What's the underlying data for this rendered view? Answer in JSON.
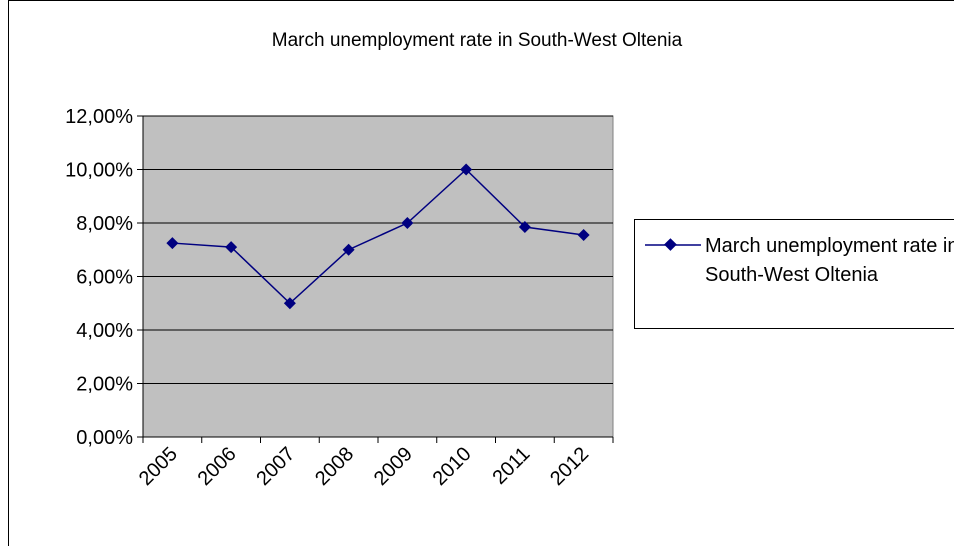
{
  "chart_data": {
    "type": "line",
    "title": "March unemployment rate in South-West Oltenia",
    "categories": [
      "2005",
      "2006",
      "2007",
      "2008",
      "2009",
      "2010",
      "2011",
      "2012"
    ],
    "series": [
      {
        "name": "March unemployment rate in South-West Oltenia",
        "values": [
          7.25,
          7.1,
          5.0,
          7.0,
          8.0,
          10.0,
          7.85,
          7.55
        ],
        "color": "#000080"
      }
    ],
    "y_ticks": [
      "0,00%",
      "2,00%",
      "4,00%",
      "6,00%",
      "8,00%",
      "10,00%",
      "12,00%"
    ],
    "ylim": [
      0,
      12
    ],
    "ytick_step": 2,
    "grid": true,
    "plot_background": "#c0c0c0",
    "legend_position": "right"
  }
}
